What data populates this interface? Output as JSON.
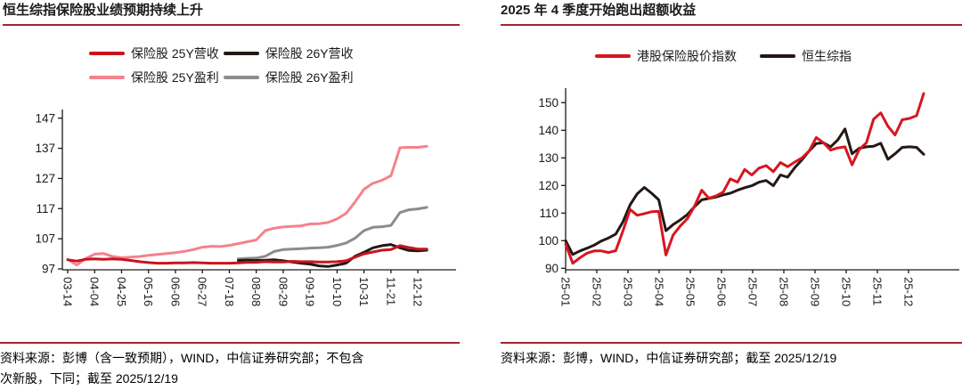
{
  "colors": {
    "accent_rule": "#A6262B",
    "axis": "#1a1a1a",
    "insurance_25y_revenue_red": "#C9141D",
    "insurance_26y_revenue_black": "#231815",
    "insurance_25y_profit_pink": "#F5828C",
    "insurance_26y_profit_gray": "#8C8C8C",
    "hk_insurance_index_red": "#D7161F",
    "hang_seng_composite_black": "#231815"
  },
  "panels": [
    {
      "title": "恒生综指保险股业绩预期持续上升",
      "legend_rows": [
        [
          0,
          1
        ],
        [
          2,
          3
        ]
      ],
      "source_lines": [
        "资料来源：彭博（含一致预期），WIND，中信证券研究部；不包含",
        "次新股，下同；截至 2025/12/19"
      ]
    },
    {
      "title": "2025 年 4 季度开始跑出超额收益",
      "legend_rows": [
        [
          0,
          1
        ]
      ],
      "source_lines": [
        "资料来源：彭博，WIND，中信证券研究部；截至 2025/12/19"
      ]
    }
  ],
  "chart_data": [
    {
      "type": "line",
      "title": "恒生综指保险股业绩预期持续上升",
      "xlabel": "",
      "ylabel": "",
      "ylim": [
        97,
        147
      ],
      "yticks": [
        97,
        107,
        117,
        127,
        137,
        147
      ],
      "grid": false,
      "legend_position": "top",
      "x_tick_labels": [
        "03-14",
        "04-04",
        "04-25",
        "05-16",
        "06-06",
        "06-27",
        "07-18",
        "08-08",
        "08-29",
        "09-19",
        "10-10",
        "10-31",
        "11-21",
        "12-12"
      ],
      "x_note": "weekly data, every 3rd week labeled, series extend to 2025/12/19",
      "series": [
        {
          "name": "保险股 25Y营收",
          "color": "#C9141D",
          "z": 4,
          "offset": 0,
          "values": [
            100.0,
            99.6,
            100.2,
            100.3,
            100.2,
            100.3,
            100.2,
            99.8,
            99.4,
            99.1,
            98.9,
            98.9,
            99.0,
            99.0,
            99.1,
            99.0,
            98.9,
            98.9,
            98.9,
            99.0,
            99.2,
            99.2,
            99.4,
            99.3,
            99.3,
            99.5,
            99.4,
            99.4,
            99.3,
            99.3,
            99.4,
            99.7,
            100.9,
            102.0,
            102.6,
            103.2,
            103.4,
            104.7,
            104.1,
            103.6,
            103.6
          ]
        },
        {
          "name": "保险股 26Y营收",
          "color": "#231815",
          "z": 3,
          "offset": 19,
          "values": [
            99.8,
            99.9,
            99.8,
            99.9,
            100.0,
            99.7,
            99.3,
            98.9,
            98.6,
            98.0,
            97.8,
            98.3,
            98.9,
            101.2,
            102.5,
            104.0,
            104.7,
            105.1,
            104.0,
            103.1,
            103.0,
            103.2
          ]
        },
        {
          "name": "保险股 25Y盈利",
          "color": "#F5828C",
          "z": 1,
          "offset": 0,
          "values": [
            100.2,
            98.3,
            100.4,
            101.9,
            102.1,
            101.1,
            100.7,
            100.9,
            101.1,
            101.5,
            101.8,
            102.1,
            102.4,
            102.8,
            103.4,
            104.2,
            104.5,
            104.4,
            104.8,
            105.4,
            106.0,
            106.6,
            109.7,
            110.5,
            110.9,
            111.1,
            111.3,
            111.9,
            112.0,
            112.4,
            113.6,
            115.4,
            119.2,
            123.4,
            125.4,
            126.4,
            127.9,
            137.2,
            137.3,
            137.3,
            137.7
          ]
        },
        {
          "name": "保险股 26Y盈利",
          "color": "#8C8C8C",
          "z": 2,
          "offset": 19,
          "values": [
            100.3,
            100.5,
            100.6,
            101.2,
            102.8,
            103.4,
            103.6,
            103.7,
            103.9,
            104.0,
            104.2,
            104.8,
            105.6,
            107.2,
            109.7,
            110.8,
            111.0,
            111.4,
            115.7,
            116.6,
            116.9,
            117.4
          ]
        }
      ]
    },
    {
      "type": "line",
      "title": "2025 年 4 季度开始跑出超额收益",
      "xlabel": "",
      "ylabel": "",
      "ylim": [
        90,
        150
      ],
      "yticks": [
        90,
        100,
        110,
        120,
        130,
        140,
        150
      ],
      "grid": false,
      "legend_position": "top",
      "x_tick_labels": [
        "25-01",
        "25-02",
        "25-03",
        "25-04",
        "25-05",
        "25-06",
        "25-07",
        "25-08",
        "25-09",
        "25-10",
        "25-11",
        "25-12"
      ],
      "x_note": "weekly data Jan-Dec 2025, indexed to 100, series extend to 2025/12/19",
      "series": [
        {
          "name": "港股保险股价指数",
          "color": "#D7161F",
          "z": 2,
          "offset": 0,
          "values": [
            98.8,
            91.8,
            93.8,
            95.5,
            96.3,
            96.3,
            95.7,
            96.4,
            103.5,
            111.3,
            109.2,
            109.8,
            110.5,
            110.6,
            94.8,
            102.0,
            105.3,
            108.0,
            112.5,
            118.3,
            115.4,
            116.2,
            117.6,
            122.4,
            121.2,
            125.8,
            123.8,
            126.3,
            127.2,
            125.0,
            128.3,
            126.8,
            128.5,
            130.0,
            132.5,
            137.4,
            135.5,
            132.8,
            133.6,
            134.0,
            127.5,
            133.0,
            135.5,
            144.0,
            146.3,
            141.5,
            138.3,
            143.8,
            144.3,
            145.3,
            153.3
          ]
        },
        {
          "name": "恒生综指",
          "color": "#231815",
          "z": 1,
          "offset": 0,
          "values": [
            100.0,
            95.0,
            96.3,
            97.3,
            98.4,
            99.9,
            101.0,
            102.4,
            106.8,
            113.0,
            117.0,
            119.3,
            117.2,
            114.8,
            103.6,
            105.8,
            107.5,
            109.5,
            112.3,
            114.8,
            115.3,
            115.8,
            116.6,
            117.2,
            118.3,
            119.2,
            119.9,
            121.2,
            121.8,
            119.9,
            123.8,
            123.0,
            126.5,
            129.3,
            132.5,
            135.2,
            135.5,
            134.0,
            136.5,
            140.5,
            131.5,
            133.5,
            134.0,
            134.2,
            135.3,
            129.5,
            131.5,
            133.8,
            134.0,
            133.8,
            131.3
          ]
        }
      ]
    }
  ]
}
